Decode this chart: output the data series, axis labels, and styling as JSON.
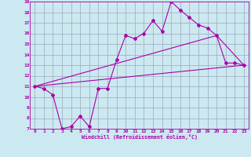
{
  "xlabel": "Windchill (Refroidissement éolien,°C)",
  "bg_color": "#cce8f0",
  "line_color": "#aa00aa",
  "grid_color": "#99aabb",
  "xlim": [
    -0.5,
    23.5
  ],
  "ylim": [
    7,
    19
  ],
  "xticks": [
    0,
    1,
    2,
    3,
    4,
    5,
    6,
    7,
    8,
    9,
    10,
    11,
    12,
    13,
    14,
    15,
    16,
    17,
    18,
    19,
    20,
    21,
    22,
    23
  ],
  "yticks": [
    7,
    8,
    9,
    10,
    11,
    12,
    13,
    14,
    15,
    16,
    17,
    18,
    19
  ],
  "curve1_x": [
    0,
    1,
    2,
    3,
    4,
    5,
    6,
    7,
    8,
    9,
    10,
    11,
    12,
    13,
    14,
    15,
    16,
    17,
    18,
    19,
    20,
    21,
    22,
    23
  ],
  "curve1_y": [
    11.0,
    10.8,
    10.2,
    7.0,
    7.2,
    8.2,
    7.2,
    10.8,
    10.8,
    13.5,
    15.8,
    15.5,
    16.0,
    17.2,
    16.2,
    19.0,
    18.2,
    17.5,
    16.8,
    16.5,
    15.8,
    13.2,
    13.2,
    13.0
  ],
  "line2_x": [
    0,
    23
  ],
  "line2_y": [
    11.0,
    13.0
  ],
  "line3_x": [
    0,
    20,
    23
  ],
  "line3_y": [
    11.0,
    15.8,
    13.0
  ]
}
